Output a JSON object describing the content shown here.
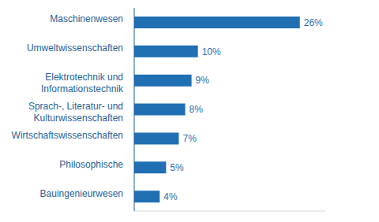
{
  "chart_data": {
    "type": "bar",
    "orientation": "horizontal",
    "categories": [
      "Maschinenwesen",
      "Umweltwissenschaften",
      "Elektrotechnik und Informationstechnik",
      "Sprach-, Literatur- und Kulturwissenschaften",
      "Wirtschaftswissenschaften",
      "Philosophische",
      "Bauingenieurwesen"
    ],
    "values": [
      26,
      10,
      9,
      8,
      7,
      5,
      4
    ],
    "value_labels": [
      "26%",
      "10%",
      "9%",
      "8%",
      "7%",
      "5%",
      "4%"
    ],
    "color": "#1f6fb2",
    "xlim": [
      0,
      30
    ],
    "xticks": [],
    "data_labels": true,
    "tick_labels": "y",
    "grid": false
  }
}
